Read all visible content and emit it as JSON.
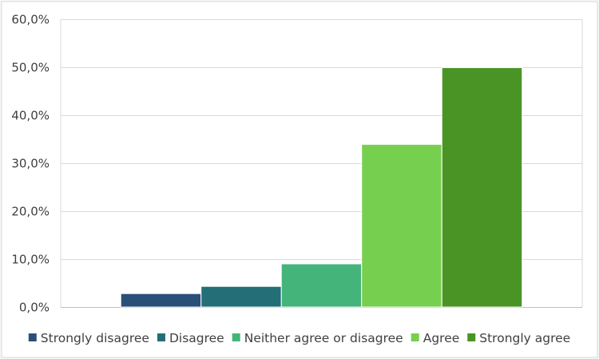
{
  "chart_data": {
    "type": "bar",
    "title": "",
    "xlabel": "",
    "ylabel": "",
    "ylim": [
      0,
      0.6
    ],
    "ytick_values": [
      0,
      0.1,
      0.2,
      0.3,
      0.4,
      0.5,
      0.6
    ],
    "ytick_labels": [
      "0,0%",
      "10,0%",
      "20,0%",
      "30,0%",
      "40,0%",
      "50,0%",
      "60,0%"
    ],
    "grid": true,
    "legend_position": "bottom",
    "series": [
      {
        "name": "Strongly disagree",
        "value": 0.028,
        "color": "#2a5078"
      },
      {
        "name": "Disagree",
        "value": 0.043,
        "color": "#236e77"
      },
      {
        "name": "Neither agree or disagree",
        "value": 0.09,
        "color": "#45b47a"
      },
      {
        "name": "Agree",
        "value": 0.339,
        "color": "#77cf4f"
      },
      {
        "name": "Strongly agree",
        "value": 0.499,
        "color": "#4a9426"
      }
    ]
  }
}
